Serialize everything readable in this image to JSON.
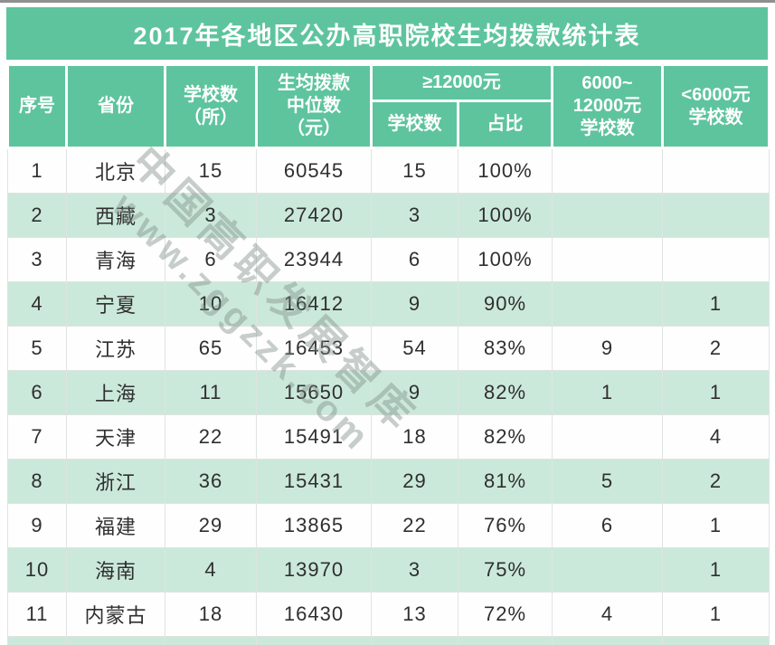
{
  "title": "2017年各地区公办高职院校生均拨款统计表",
  "watermark": {
    "line1": "中国高职发展智库",
    "line2": "www.zggzzk.com"
  },
  "colors": {
    "header_green": "#5EC49D",
    "row_alt_green": "#CBE9DA",
    "row_white": "#FDFEFD",
    "header_text": "#FFFFFF",
    "body_text": "#2F2F2F"
  },
  "table": {
    "header": {
      "index": "序号",
      "province": "省份",
      "school_count": "学校数\n（所）",
      "median": "生均拨款\n中位数\n（元）",
      "ge12000": "≥12000元",
      "ge12000_schools": "学校数",
      "ge12000_ratio": "占比",
      "mid_6000_12000": "6000~\n12000元\n学校数",
      "lt6000": "<6000元\n学校数"
    },
    "field_order": [
      "index",
      "province",
      "schools",
      "median",
      "ge_schools",
      "ge_ratio",
      "mid_schools",
      "lt_schools"
    ],
    "rows": [
      {
        "index": "1",
        "province": "北京",
        "schools": "15",
        "median": "60545",
        "ge_schools": "15",
        "ge_ratio": "100%",
        "mid_schools": "",
        "lt_schools": ""
      },
      {
        "index": "2",
        "province": "西藏",
        "schools": "3",
        "median": "27420",
        "ge_schools": "3",
        "ge_ratio": "100%",
        "mid_schools": "",
        "lt_schools": ""
      },
      {
        "index": "3",
        "province": "青海",
        "schools": "6",
        "median": "23944",
        "ge_schools": "6",
        "ge_ratio": "100%",
        "mid_schools": "",
        "lt_schools": ""
      },
      {
        "index": "4",
        "province": "宁夏",
        "schools": "10",
        "median": "16412",
        "ge_schools": "9",
        "ge_ratio": "90%",
        "mid_schools": "",
        "lt_schools": "1"
      },
      {
        "index": "5",
        "province": "江苏",
        "schools": "65",
        "median": "16453",
        "ge_schools": "54",
        "ge_ratio": "83%",
        "mid_schools": "9",
        "lt_schools": "2"
      },
      {
        "index": "6",
        "province": "上海",
        "schools": "11",
        "median": "15650",
        "ge_schools": "9",
        "ge_ratio": "82%",
        "mid_schools": "1",
        "lt_schools": "1"
      },
      {
        "index": "7",
        "province": "天津",
        "schools": "22",
        "median": "15491",
        "ge_schools": "18",
        "ge_ratio": "82%",
        "mid_schools": "",
        "lt_schools": "4"
      },
      {
        "index": "8",
        "province": "浙江",
        "schools": "36",
        "median": "15431",
        "ge_schools": "29",
        "ge_ratio": "81%",
        "mid_schools": "5",
        "lt_schools": "2"
      },
      {
        "index": "9",
        "province": "福建",
        "schools": "29",
        "median": "13865",
        "ge_schools": "22",
        "ge_ratio": "76%",
        "mid_schools": "6",
        "lt_schools": "1"
      },
      {
        "index": "10",
        "province": "海南",
        "schools": "4",
        "median": "13970",
        "ge_schools": "3",
        "ge_ratio": "75%",
        "mid_schools": "",
        "lt_schools": "1"
      },
      {
        "index": "11",
        "province": "内蒙古",
        "schools": "18",
        "median": "16430",
        "ge_schools": "13",
        "ge_ratio": "72%",
        "mid_schools": "4",
        "lt_schools": "1"
      }
    ]
  },
  "chart_data": {
    "type": "table",
    "title": "2017年各地区公办高职院校生均拨款统计表",
    "columns": [
      "序号",
      "省份",
      "学校数（所）",
      "生均拨款中位数（元）",
      "≥12000元 学校数",
      "≥12000元 占比",
      "6000~12000元学校数",
      "<6000元学校数"
    ],
    "rows": [
      [
        1,
        "北京",
        15,
        60545,
        15,
        "100%",
        "",
        ""
      ],
      [
        2,
        "西藏",
        3,
        27420,
        3,
        "100%",
        "",
        ""
      ],
      [
        3,
        "青海",
        6,
        23944,
        6,
        "100%",
        "",
        ""
      ],
      [
        4,
        "宁夏",
        10,
        16412,
        9,
        "90%",
        "",
        1
      ],
      [
        5,
        "江苏",
        65,
        16453,
        54,
        "83%",
        9,
        2
      ],
      [
        6,
        "上海",
        11,
        15650,
        9,
        "82%",
        1,
        1
      ],
      [
        7,
        "天津",
        22,
        15491,
        18,
        "82%",
        "",
        4
      ],
      [
        8,
        "浙江",
        36,
        15431,
        29,
        "81%",
        5,
        2
      ],
      [
        9,
        "福建",
        29,
        13865,
        22,
        "76%",
        6,
        1
      ],
      [
        10,
        "海南",
        4,
        13970,
        3,
        "75%",
        "",
        1
      ],
      [
        11,
        "内蒙古",
        18,
        16430,
        13,
        "72%",
        4,
        1
      ]
    ]
  }
}
